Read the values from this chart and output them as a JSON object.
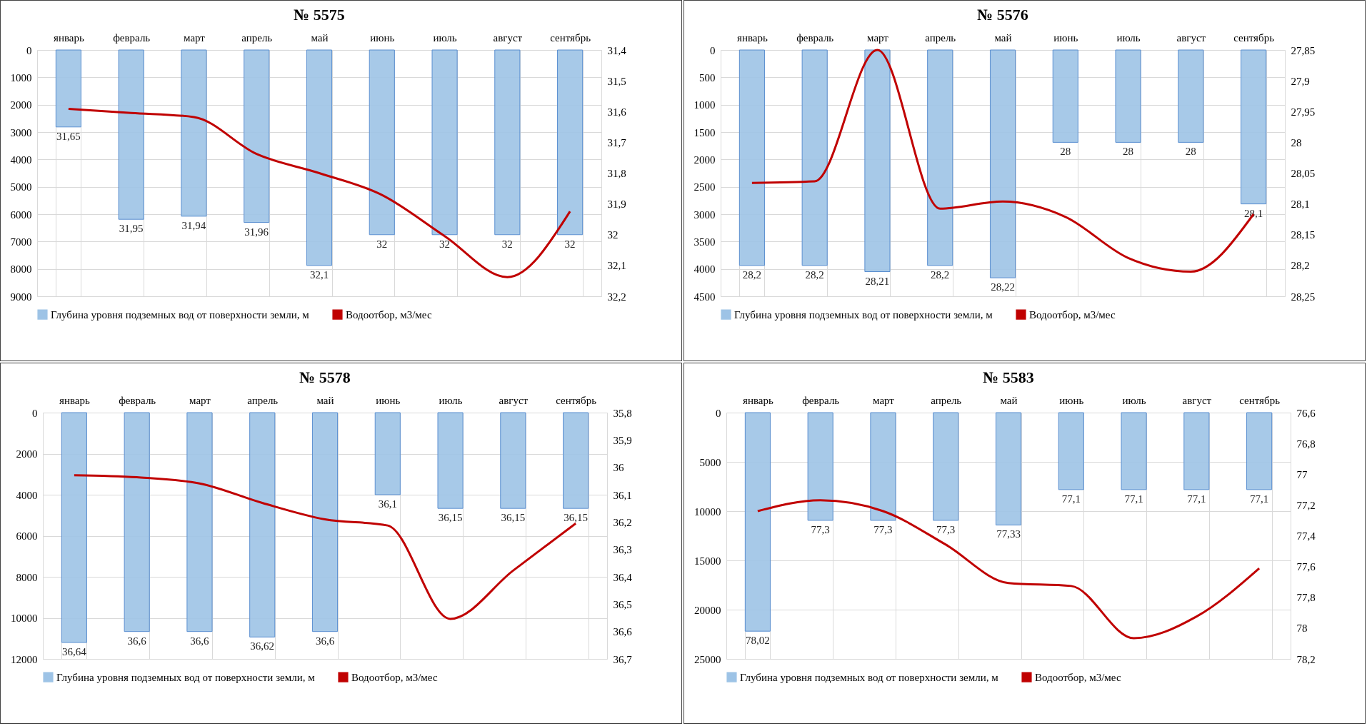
{
  "chart_data": [
    {
      "type": "bar",
      "title": "№ 5575",
      "categories": [
        "январь",
        "февраль",
        "март",
        "апрель",
        "май",
        "июнь",
        "июль",
        "август",
        "сентябрь"
      ],
      "grid": true,
      "legend": "bottom",
      "ylim": [
        9000,
        0
      ],
      "yticks": [
        0,
        1000,
        2000,
        3000,
        4000,
        5000,
        6000,
        7000,
        8000,
        9000
      ],
      "y2lim": [
        32.2,
        31.4
      ],
      "y2ticks": [
        {
          "value": 31.4,
          "label": "31,4"
        },
        {
          "value": 31.5,
          "label": "31,5"
        },
        {
          "value": 31.6,
          "label": "31,6"
        },
        {
          "value": 31.7,
          "label": "31,7"
        },
        {
          "value": 31.8,
          "label": "31,8"
        },
        {
          "value": 31.9,
          "label": "31,9"
        },
        {
          "value": 32,
          "label": "32"
        },
        {
          "value": 32.1,
          "label": "32,1"
        },
        {
          "value": 32.2,
          "label": "32,2"
        }
      ],
      "series": [
        {
          "name": "Глубина уровня подземных вод от поверхности земли, м",
          "axis": "y2",
          "color": "#9dc3e6",
          "values": [
            31.65,
            31.95,
            31.94,
            31.96,
            32.1,
            32,
            32,
            32,
            32
          ],
          "value_labels": [
            "31,65",
            "31,95",
            "31,94",
            "31,96",
            "32,1",
            "32",
            "32",
            "32",
            "32"
          ]
        },
        {
          "name": "Водоотбор, м3/мес",
          "type": "line",
          "axis": "y",
          "color": "#c00000",
          "values": [
            2150,
            2300,
            2450,
            3800,
            4500,
            5300,
            6800,
            8300,
            5900
          ]
        }
      ]
    },
    {
      "type": "bar",
      "title": "№ 5576",
      "categories": [
        "январь",
        "февраль",
        "март",
        "апрель",
        "май",
        "июнь",
        "июль",
        "август",
        "сентябрь"
      ],
      "grid": true,
      "legend": "bottom",
      "ylim": [
        4500,
        0
      ],
      "yticks": [
        0,
        500,
        1000,
        1500,
        2000,
        2500,
        3000,
        3500,
        4000,
        4500
      ],
      "y2lim": [
        28.25,
        27.85
      ],
      "y2ticks": [
        {
          "value": 27.85,
          "label": "27,85"
        },
        {
          "value": 27.9,
          "label": "27,9"
        },
        {
          "value": 27.95,
          "label": "27,95"
        },
        {
          "value": 28,
          "label": "28"
        },
        {
          "value": 28.05,
          "label": "28,05"
        },
        {
          "value": 28.1,
          "label": "28,1"
        },
        {
          "value": 28.15,
          "label": "28,15"
        },
        {
          "value": 28.2,
          "label": "28,2"
        },
        {
          "value": 28.25,
          "label": "28,25"
        }
      ],
      "series": [
        {
          "name": "Глубина уровня подземных вод от поверхности земли, м",
          "axis": "y2",
          "color": "#9dc3e6",
          "values": [
            28.2,
            28.2,
            28.21,
            28.2,
            28.22,
            28,
            28,
            28,
            28.1
          ],
          "value_labels": [
            "28,2",
            "28,2",
            "28,21",
            "28,2",
            "28,22",
            "28",
            "28",
            "28",
            "28,1"
          ]
        },
        {
          "name": "Водоотбор, м3/мес",
          "type": "line",
          "axis": "y",
          "color": "#c00000",
          "values": [
            2430,
            2400,
            0,
            2900,
            2770,
            3050,
            3800,
            4050,
            3000
          ]
        }
      ]
    },
    {
      "type": "bar",
      "title": "№ 5578",
      "categories": [
        "январь",
        "февраль",
        "март",
        "апрель",
        "май",
        "июнь",
        "июль",
        "август",
        "сентябрь"
      ],
      "grid": true,
      "legend": "bottom",
      "ylim": [
        12000,
        0
      ],
      "yticks": [
        0,
        2000,
        4000,
        6000,
        8000,
        10000,
        12000
      ],
      "y2lim": [
        36.7,
        35.8
      ],
      "y2ticks": [
        {
          "value": 35.8,
          "label": "35,8"
        },
        {
          "value": 35.9,
          "label": "35,9"
        },
        {
          "value": 36,
          "label": "36"
        },
        {
          "value": 36.1,
          "label": "36,1"
        },
        {
          "value": 36.2,
          "label": "36,2"
        },
        {
          "value": 36.3,
          "label": "36,3"
        },
        {
          "value": 36.4,
          "label": "36,4"
        },
        {
          "value": 36.5,
          "label": "36,5"
        },
        {
          "value": 36.6,
          "label": "36,6"
        },
        {
          "value": 36.7,
          "label": "36,7"
        }
      ],
      "series": [
        {
          "name": "Глубина уровня подземных вод от поверхности земли, м",
          "axis": "y2",
          "color": "#9dc3e6",
          "values": [
            36.64,
            36.6,
            36.6,
            36.62,
            36.6,
            36.1,
            36.15,
            36.15,
            36.15
          ],
          "value_labels": [
            "36,64",
            "36,6",
            "36,6",
            "36,62",
            "36,6",
            "36,1",
            "36,15",
            "36,15",
            "36,15"
          ]
        },
        {
          "name": "Водоотбор, м3/мес",
          "type": "line",
          "axis": "y",
          "color": "#c00000",
          "values": [
            3050,
            3150,
            3450,
            4400,
            5200,
            5500,
            10050,
            7700,
            5400
          ]
        }
      ]
    },
    {
      "type": "bar",
      "title": "№ 5583",
      "categories": [
        "январь",
        "февраль",
        "март",
        "апрель",
        "май",
        "июнь",
        "июль",
        "август",
        "сентябрь"
      ],
      "grid": true,
      "legend": "bottom",
      "ylim": [
        25000,
        0
      ],
      "yticks": [
        0,
        5000,
        10000,
        15000,
        20000,
        25000
      ],
      "y2lim": [
        78.2,
        76.6
      ],
      "y2ticks": [
        {
          "value": 76.6,
          "label": "76,6"
        },
        {
          "value": 76.8,
          "label": "76,8"
        },
        {
          "value": 77,
          "label": "77"
        },
        {
          "value": 77.2,
          "label": "77,2"
        },
        {
          "value": 77.4,
          "label": "77,4"
        },
        {
          "value": 77.6,
          "label": "77,6"
        },
        {
          "value": 77.8,
          "label": "77,8"
        },
        {
          "value": 78,
          "label": "78"
        },
        {
          "value": 78.2,
          "label": "78,2"
        }
      ],
      "series": [
        {
          "name": "Глубина уровня подземных вод от поверхности земли, м",
          "axis": "y2",
          "color": "#9dc3e6",
          "values": [
            78.02,
            77.3,
            77.3,
            77.3,
            77.33,
            77.1,
            77.1,
            77.1,
            77.1
          ],
          "value_labels": [
            "78,02",
            "77,3",
            "77,3",
            "77,3",
            "77,33",
            "77,1",
            "77,1",
            "77,1",
            "77,1"
          ]
        },
        {
          "name": "Водоотбор, м3/мес",
          "type": "line",
          "axis": "y",
          "color": "#c00000",
          "values": [
            10000,
            8900,
            10000,
            13400,
            17300,
            17600,
            22900,
            20700,
            15800
          ]
        }
      ]
    }
  ]
}
